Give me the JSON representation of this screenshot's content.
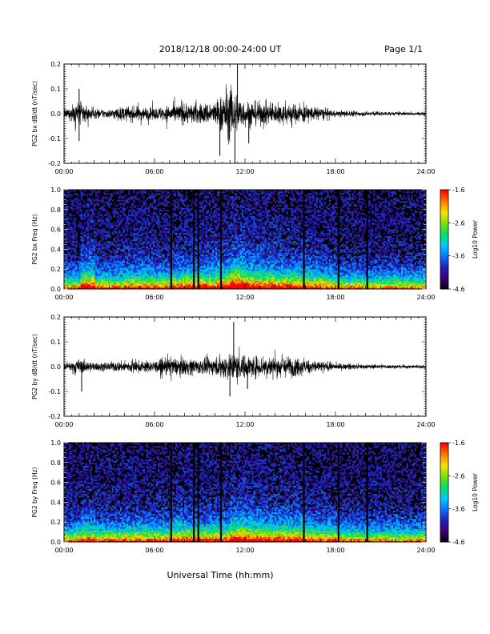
{
  "header": {
    "title": "2018/12/18  00:00-24:00 UT",
    "page": "Page 1/1"
  },
  "xlabel": "Universal Time (hh:mm)",
  "colorbar": {
    "label": "Log10 Power",
    "ticks": [
      "-1.6",
      "-2.6",
      "-3.6",
      "-4.6"
    ],
    "range": [
      -4.6,
      -1.6
    ],
    "colors": [
      "#000000",
      "#3b0070",
      "#1f1fb5",
      "#0a72ff",
      "#00c8ff",
      "#00e06a",
      "#7ae000",
      "#ffe000",
      "#ff7a00",
      "#ff0000"
    ]
  },
  "chart_data": [
    {
      "type": "line",
      "ylabel": "PG2 bx dB/dt (nT/sec)",
      "xlim": [
        "00:00",
        "24:00"
      ],
      "x_ticks": [
        "00:00",
        "06:00",
        "12:00",
        "18:00",
        "24:00"
      ],
      "ylim": [
        -0.2,
        0.2
      ],
      "y_ticks": [
        "0.2",
        "0.1",
        "0.0",
        "-0.1",
        "-0.2"
      ],
      "envelope_hours": [
        0,
        1,
        2,
        3,
        4,
        5,
        6,
        7,
        8,
        9,
        10,
        11,
        12,
        13,
        14,
        15,
        16,
        17,
        18,
        19,
        20,
        21,
        22,
        23,
        24
      ],
      "envelope_nT_per_s": [
        0.02,
        0.09,
        0.03,
        0.03,
        0.05,
        0.05,
        0.04,
        0.06,
        0.07,
        0.07,
        0.08,
        0.19,
        0.09,
        0.08,
        0.07,
        0.07,
        0.06,
        0.04,
        0.02,
        0.02,
        0.015,
        0.015,
        0.012,
        0.012,
        0.012
      ],
      "spikes": [
        {
          "x": "01:00",
          "y": 0.1
        },
        {
          "x": "01:00",
          "y": -0.11
        },
        {
          "x": "11:30",
          "y": 0.2
        },
        {
          "x": "11:20",
          "y": -0.2
        },
        {
          "x": "10:20",
          "y": -0.17
        },
        {
          "x": "12:15",
          "y": -0.12
        }
      ]
    },
    {
      "type": "heatmap",
      "ylabel": "PG2 bx Freq (Hz)",
      "xlim": [
        "00:00",
        "24:00"
      ],
      "x_ticks": [
        "00:00",
        "06:00",
        "12:00",
        "18:00",
        "24:00"
      ],
      "ylim": [
        0.0,
        1.0
      ],
      "y_ticks": [
        "1.0",
        "0.8",
        "0.6",
        "0.4",
        "0.2",
        "0.0"
      ],
      "z_range": [
        -4.6,
        -1.6
      ],
      "gap_hours": [
        7.1,
        8.6,
        8.9,
        10.4,
        15.9,
        18.2,
        20.1
      ]
    },
    {
      "type": "line",
      "ylabel": "PG2 by dB/dt (nT/sec)",
      "xlim": [
        "00:00",
        "24:00"
      ],
      "x_ticks": [
        "00:00",
        "06:00",
        "12:00",
        "18:00",
        "24:00"
      ],
      "ylim": [
        -0.2,
        0.2
      ],
      "y_ticks": [
        "0.2",
        "0.1",
        "0.0",
        "-0.1",
        "-0.2"
      ],
      "envelope_hours": [
        0,
        1,
        2,
        3,
        4,
        5,
        6,
        7,
        8,
        9,
        10,
        11,
        12,
        13,
        14,
        15,
        16,
        17,
        18,
        19,
        20,
        21,
        22,
        23,
        24
      ],
      "envelope_nT_per_s": [
        0.02,
        0.05,
        0.03,
        0.03,
        0.04,
        0.04,
        0.04,
        0.06,
        0.06,
        0.05,
        0.06,
        0.1,
        0.08,
        0.07,
        0.07,
        0.07,
        0.05,
        0.04,
        0.02,
        0.02,
        0.015,
        0.015,
        0.012,
        0.012,
        0.012
      ],
      "spikes": [
        {
          "x": "11:15",
          "y": 0.18
        },
        {
          "x": "11:00",
          "y": -0.12
        },
        {
          "x": "01:10",
          "y": -0.1
        },
        {
          "x": "12:10",
          "y": -0.09
        }
      ]
    },
    {
      "type": "heatmap",
      "ylabel": "PG2 by Freq (Hz)",
      "xlim": [
        "00:00",
        "24:00"
      ],
      "x_ticks": [
        "00:00",
        "06:00",
        "12:00",
        "18:00",
        "24:00"
      ],
      "ylim": [
        0.0,
        1.0
      ],
      "y_ticks": [
        "1.0",
        "0.8",
        "0.6",
        "0.4",
        "0.2",
        "0.0"
      ],
      "z_range": [
        -4.6,
        -1.6
      ],
      "gap_hours": [
        7.1,
        8.6,
        8.9,
        10.4,
        15.9,
        18.2,
        20.1
      ]
    }
  ]
}
